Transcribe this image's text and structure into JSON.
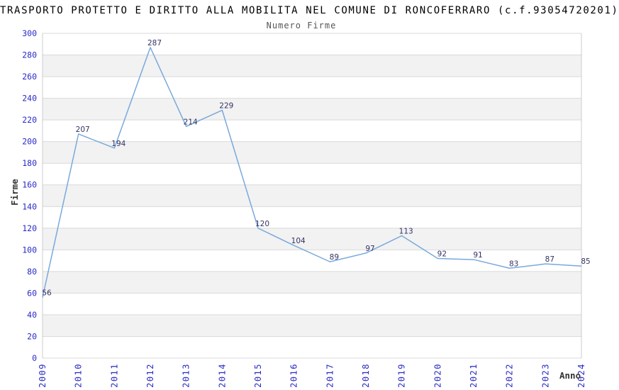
{
  "chart_data": {
    "type": "line",
    "title": "TRASPORTO PROTETTO E DIRITTO ALLA MOBILITA NEL COMUNE DI RONCOFERRARO (c.f.93054720201)",
    "subtitle": "Numero Firme",
    "xlabel": "Anno",
    "ylabel": "Firme",
    "categories": [
      "2009",
      "2010",
      "2011",
      "2012",
      "2013",
      "2014",
      "2015",
      "2016",
      "2017",
      "2018",
      "2019",
      "2020",
      "2021",
      "2022",
      "2023",
      "2024"
    ],
    "values": [
      56,
      207,
      194,
      287,
      214,
      229,
      120,
      104,
      89,
      97,
      113,
      92,
      91,
      83,
      87,
      85
    ],
    "ylim": [
      0,
      300
    ],
    "ytick_step": 20,
    "grid": "horizontal",
    "alternating_bands": true,
    "legend": "none",
    "colors": {
      "line": "#79a9dc",
      "point_label": "#333366",
      "tick_label": "#2a2ac8",
      "grid": "#d9d9d9",
      "band": "#f2f2f2",
      "border": "#cccccc",
      "title": "#000000",
      "subtitle": "#555555",
      "axis_title": "#333333",
      "background": "#ffffff"
    }
  }
}
